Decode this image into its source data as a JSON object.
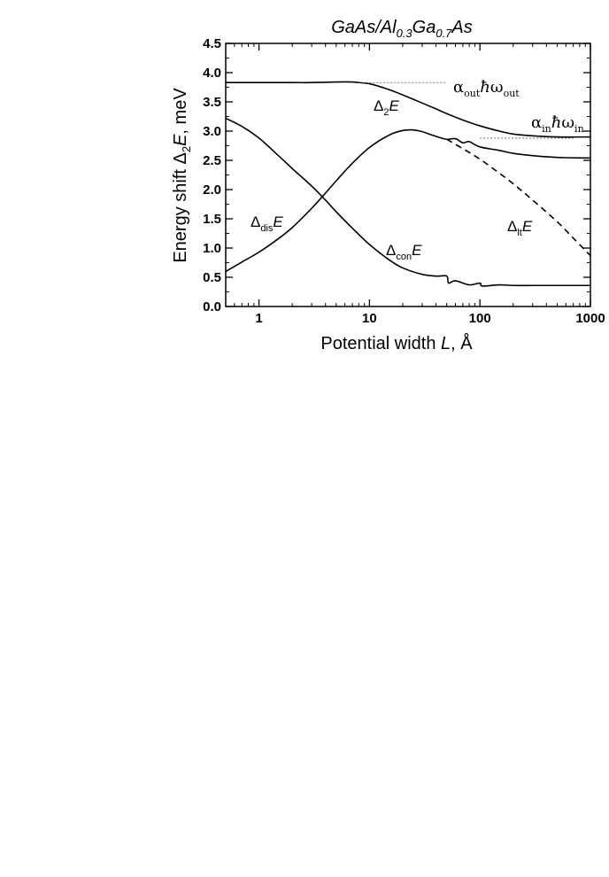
{
  "chart_data": {
    "type": "line",
    "title": {
      "p1": "GaAs/Al",
      "s1": "0.3",
      "p2": "Ga",
      "s2": "0.7",
      "p3": "As"
    },
    "xlabel": {
      "pre": "Potential width ",
      "var": "L",
      "post": ", Å"
    },
    "ylabel": {
      "pre": "Energy shift ",
      "delta": "Δ",
      "sub": "2",
      "var": "E",
      "post": ", meV"
    },
    "x_scale": "log",
    "xlim": [
      0.5,
      1000
    ],
    "ylim": [
      0,
      4.5
    ],
    "x_ticks": [
      {
        "value": 1,
        "label": "1"
      },
      {
        "value": 10,
        "label": "10"
      },
      {
        "value": 100,
        "label": "100"
      },
      {
        "value": 1000,
        "label": "1000"
      }
    ],
    "y_ticks": [
      {
        "value": 0.0,
        "label": "0.0"
      },
      {
        "value": 0.5,
        "label": "0.5"
      },
      {
        "value": 1.0,
        "label": "1.0"
      },
      {
        "value": 1.5,
        "label": "1.5"
      },
      {
        "value": 2.0,
        "label": "2.0"
      },
      {
        "value": 2.5,
        "label": "2.5"
      },
      {
        "value": 3.0,
        "label": "3.0"
      },
      {
        "value": 3.5,
        "label": "3.5"
      },
      {
        "value": 4.0,
        "label": "4.0"
      },
      {
        "value": 4.5,
        "label": "4.5"
      }
    ],
    "grid": false,
    "series": [
      {
        "id": "d2E",
        "style": "solid",
        "x": [
          0.5,
          1,
          2,
          3,
          5,
          7,
          8,
          10,
          12,
          15,
          20,
          30,
          40,
          50,
          70,
          100,
          150,
          200,
          300,
          500,
          1000
        ],
        "y": [
          3.83,
          3.83,
          3.83,
          3.83,
          3.84,
          3.84,
          3.83,
          3.81,
          3.77,
          3.71,
          3.62,
          3.48,
          3.38,
          3.3,
          3.19,
          3.09,
          3.0,
          2.95,
          2.92,
          2.9,
          2.9
        ]
      },
      {
        "id": "ddisE",
        "style": "solid",
        "x": [
          0.5,
          0.7,
          1,
          1.5,
          2,
          3,
          4,
          5,
          7,
          10,
          15,
          20,
          25,
          30,
          40,
          50,
          60,
          70,
          80,
          100,
          150,
          200,
          300,
          500,
          1000
        ],
        "y": [
          0.6,
          0.76,
          0.93,
          1.16,
          1.35,
          1.68,
          1.94,
          2.15,
          2.45,
          2.72,
          2.93,
          3.01,
          3.02,
          2.99,
          2.91,
          2.86,
          2.87,
          2.8,
          2.82,
          2.73,
          2.67,
          2.62,
          2.58,
          2.55,
          2.54
        ]
      },
      {
        "id": "dconE",
        "style": "solid",
        "x": [
          0.5,
          0.7,
          1,
          1.5,
          2,
          3,
          4,
          5,
          7,
          10,
          15,
          20,
          30,
          40,
          50,
          52,
          60,
          80,
          100,
          105,
          150,
          200,
          300,
          500,
          1000
        ],
        "y": [
          3.22,
          3.08,
          2.88,
          2.58,
          2.36,
          2.06,
          1.82,
          1.62,
          1.34,
          1.06,
          0.8,
          0.66,
          0.55,
          0.52,
          0.52,
          0.4,
          0.44,
          0.37,
          0.4,
          0.35,
          0.37,
          0.36,
          0.36,
          0.36,
          0.36
        ]
      },
      {
        "id": "dltE",
        "style": "dashed",
        "x": [
          50,
          70,
          100,
          150,
          200,
          300,
          500,
          700,
          1000
        ],
        "y": [
          2.86,
          2.7,
          2.52,
          2.28,
          2.1,
          1.82,
          1.45,
          1.17,
          0.87
        ]
      },
      {
        "id": "ref_out",
        "style": "dotted",
        "x": [
          8,
          50
        ],
        "y": [
          3.83,
          3.83
        ]
      },
      {
        "id": "ref_in",
        "style": "dotted",
        "x": [
          100,
          700
        ],
        "y": [
          2.88,
          2.88
        ]
      }
    ],
    "annotations": {
      "alpha_out": {
        "greek": "α",
        "sub1": "out",
        "hbar": "ħ",
        "omega": "ω",
        "sub2": "out"
      },
      "alpha_in": {
        "greek": "α",
        "sub1": "in",
        "hbar": "ħ",
        "omega": "ω",
        "sub2": "in"
      },
      "d2E": {
        "delta": "Δ",
        "sub": "2",
        "var": "E"
      },
      "ddisE": {
        "delta": "Δ",
        "sub": "dis",
        "var": "E"
      },
      "dconE": {
        "delta": "Δ",
        "sub": "con",
        "var": "E"
      },
      "dltE": {
        "delta": "Δ",
        "sub": "lt",
        "var": "E"
      }
    }
  }
}
